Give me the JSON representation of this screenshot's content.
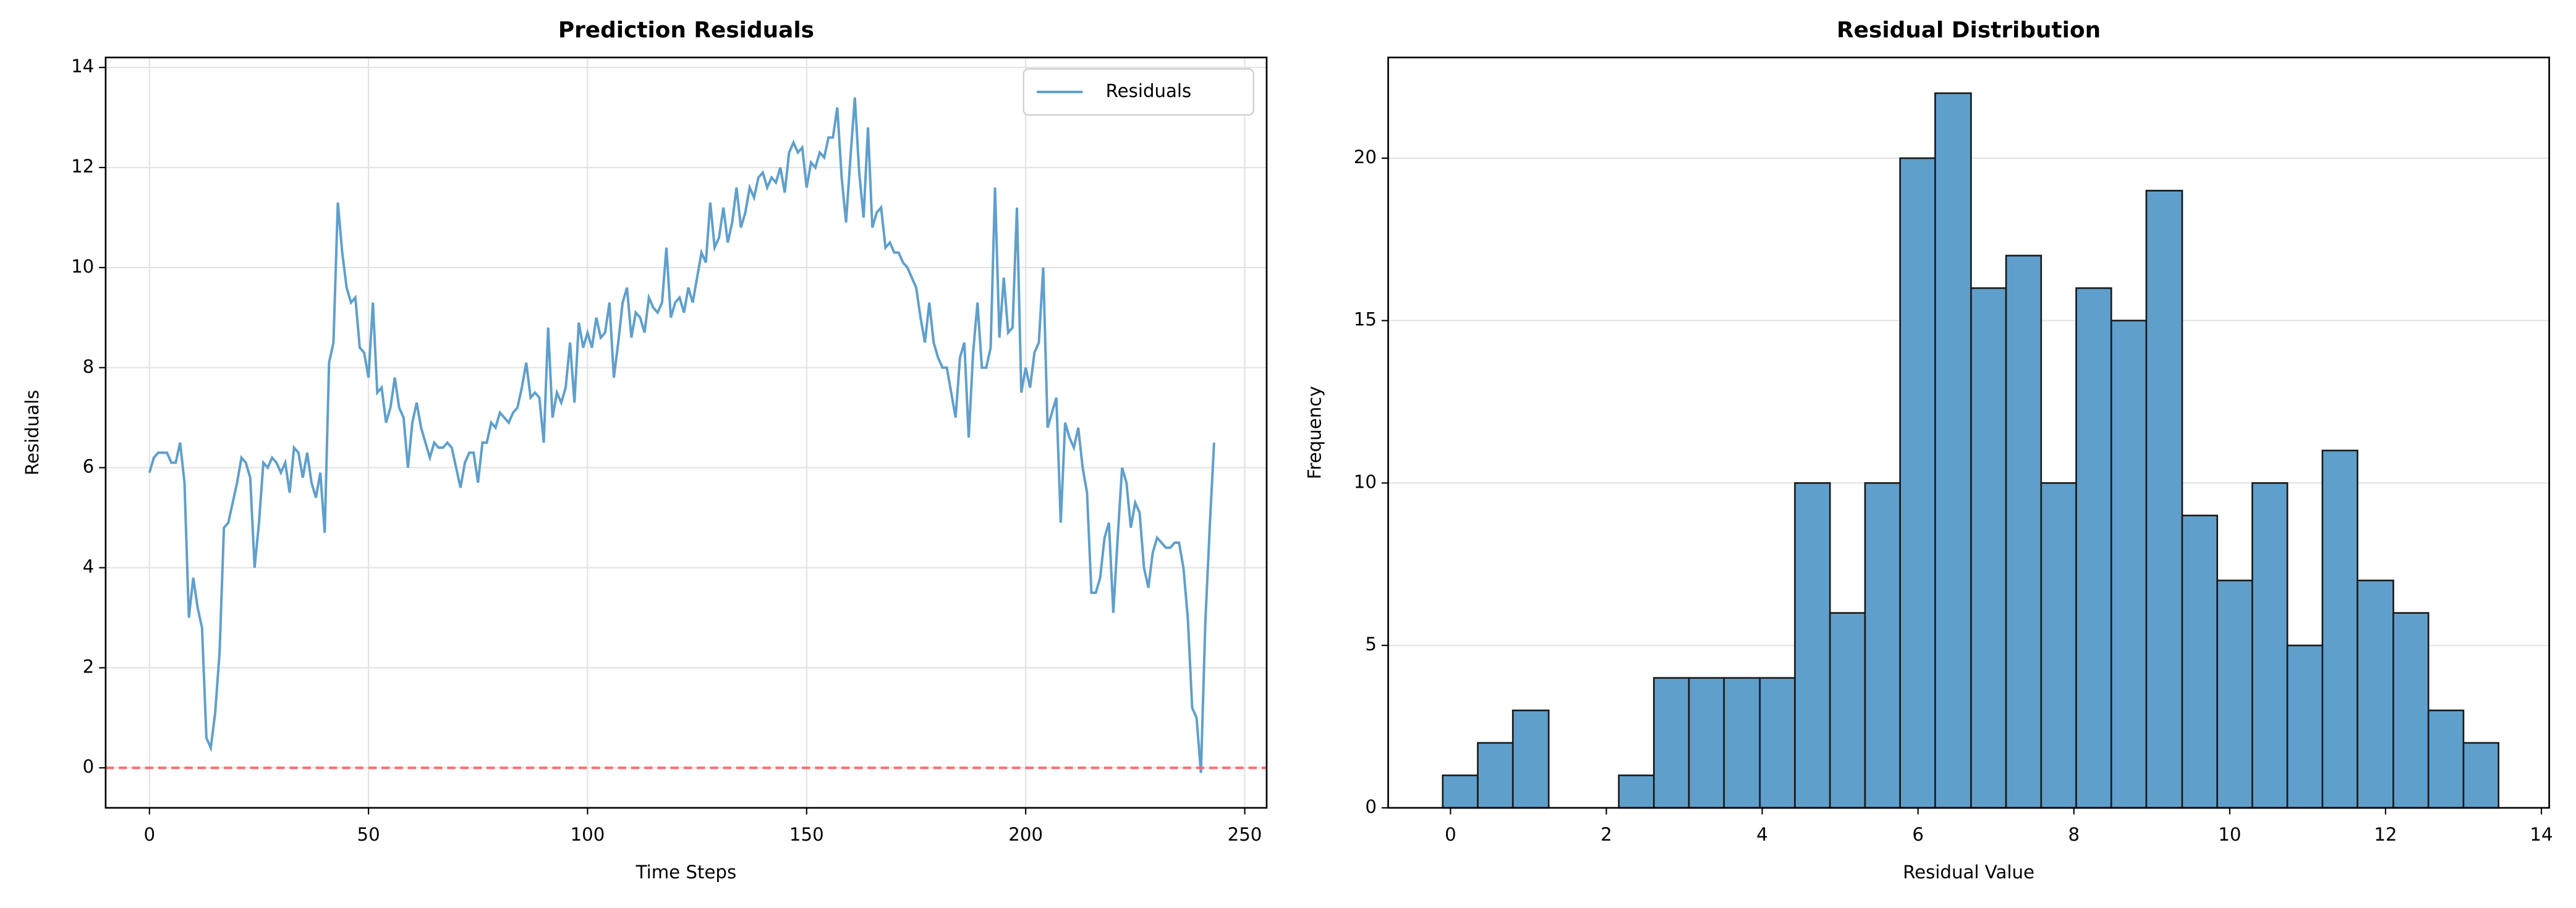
{
  "chart_data": [
    {
      "type": "line",
      "title": "Prediction Residuals",
      "xlabel": "Time Steps",
      "ylabel": "Residuals",
      "x": [
        0,
        1,
        2,
        3,
        4,
        5,
        6,
        7,
        8,
        9,
        10,
        11,
        12,
        13,
        14,
        15,
        16,
        17,
        18,
        19,
        20,
        21,
        22,
        23,
        24,
        25,
        26,
        27,
        28,
        29,
        30,
        31,
        32,
        33,
        34,
        35,
        36,
        37,
        38,
        39,
        40,
        41,
        42,
        43,
        44,
        45,
        46,
        47,
        48,
        49,
        50,
        51,
        52,
        53,
        54,
        55,
        56,
        57,
        58,
        59,
        60,
        61,
        62,
        63,
        64,
        65,
        66,
        67,
        68,
        69,
        70,
        71,
        72,
        73,
        74,
        75,
        76,
        77,
        78,
        79,
        80,
        81,
        82,
        83,
        84,
        85,
        86,
        87,
        88,
        89,
        90,
        91,
        92,
        93,
        94,
        95,
        96,
        97,
        98,
        99,
        100,
        101,
        102,
        103,
        104,
        105,
        106,
        107,
        108,
        109,
        110,
        111,
        112,
        113,
        114,
        115,
        116,
        117,
        118,
        119,
        120,
        121,
        122,
        123,
        124,
        125,
        126,
        127,
        128,
        129,
        130,
        131,
        132,
        133,
        134,
        135,
        136,
        137,
        138,
        139,
        140,
        141,
        142,
        143,
        144,
        145,
        146,
        147,
        148,
        149,
        150,
        151,
        152,
        153,
        154,
        155,
        156,
        157,
        158,
        159,
        160,
        161,
        162,
        163,
        164,
        165,
        166,
        167,
        168,
        169,
        170,
        171,
        172,
        173,
        174,
        175,
        176,
        177,
        178,
        179,
        180,
        181,
        182,
        183,
        184,
        185,
        186,
        187,
        188,
        189,
        190,
        191,
        192,
        193,
        194,
        195,
        196,
        197,
        198,
        199,
        200,
        201,
        202,
        203,
        204,
        205,
        206,
        207,
        208,
        209,
        210,
        211,
        212,
        213,
        214,
        215,
        216,
        217,
        218,
        219,
        220,
        221,
        222,
        223,
        224,
        225,
        226,
        227,
        228,
        229,
        230,
        231,
        232,
        233,
        234,
        235,
        236,
        237,
        238,
        239,
        240,
        241,
        242,
        243
      ],
      "series": [
        {
          "name": "Residuals",
          "color": "#5f9fcc",
          "values": [
            5.9,
            6.2,
            6.3,
            6.3,
            6.3,
            6.1,
            6.1,
            6.5,
            5.7,
            3.0,
            3.8,
            3.2,
            2.8,
            0.6,
            0.4,
            1.1,
            2.3,
            4.8,
            4.9,
            5.3,
            5.7,
            6.2,
            6.1,
            5.8,
            4.0,
            4.9,
            6.1,
            6.0,
            6.2,
            6.1,
            5.9,
            6.1,
            5.5,
            6.4,
            6.3,
            5.8,
            6.3,
            5.7,
            5.4,
            5.9,
            4.7,
            8.1,
            8.5,
            11.3,
            10.3,
            9.6,
            9.3,
            9.4,
            8.4,
            8.3,
            7.8,
            9.3,
            7.5,
            7.6,
            6.9,
            7.2,
            7.8,
            7.2,
            7.0,
            6.0,
            6.9,
            7.3,
            6.8,
            6.5,
            6.2,
            6.5,
            6.4,
            6.4,
            6.5,
            6.4,
            6.0,
            5.6,
            6.1,
            6.3,
            6.3,
            5.7,
            6.5,
            6.5,
            6.9,
            6.8,
            7.1,
            7.0,
            6.9,
            7.1,
            7.2,
            7.6,
            8.1,
            7.4,
            7.5,
            7.4,
            6.5,
            8.8,
            7.0,
            7.5,
            7.3,
            7.6,
            8.5,
            7.3,
            8.9,
            8.4,
            8.7,
            8.4,
            9.0,
            8.6,
            8.7,
            9.3,
            7.8,
            8.5,
            9.3,
            9.6,
            8.6,
            9.1,
            9.0,
            8.7,
            9.4,
            9.2,
            9.1,
            9.3,
            10.4,
            9.0,
            9.3,
            9.4,
            9.1,
            9.6,
            9.3,
            9.8,
            10.3,
            10.1,
            11.3,
            10.4,
            10.6,
            11.2,
            10.5,
            10.9,
            11.6,
            10.8,
            11.1,
            11.6,
            11.4,
            11.8,
            11.9,
            11.6,
            11.8,
            11.7,
            12.0,
            11.5,
            12.3,
            12.5,
            12.3,
            12.4,
            11.6,
            12.1,
            12.0,
            12.3,
            12.2,
            12.6,
            12.6,
            13.2,
            11.8,
            10.9,
            12.2,
            13.4,
            11.9,
            11.0,
            12.8,
            10.8,
            11.1,
            11.2,
            10.4,
            10.5,
            10.3,
            10.3,
            10.1,
            10.0,
            9.8,
            9.6,
            9.0,
            8.5,
            9.3,
            8.5,
            8.2,
            8.0,
            8.0,
            7.5,
            7.0,
            8.2,
            8.5,
            6.6,
            8.3,
            9.3,
            8.0,
            8.0,
            8.4,
            11.6,
            8.6,
            9.8,
            8.7,
            8.8,
            11.2,
            7.5,
            8.0,
            7.6,
            8.3,
            8.5,
            10.0,
            6.8,
            7.1,
            7.4,
            4.9,
            6.9,
            6.6,
            6.4,
            6.8,
            6.0,
            5.5,
            3.5,
            3.5,
            3.8,
            4.6,
            4.9,
            3.1,
            4.6,
            6.0,
            5.7,
            4.8,
            5.3,
            5.1,
            4.0,
            3.6,
            4.3,
            4.6,
            4.5,
            4.4,
            4.4,
            4.5,
            4.5,
            4.0,
            3.0,
            1.2,
            1.0,
            -0.1,
            2.9,
            4.8,
            6.5
          ]
        }
      ],
      "hline": {
        "value": 0,
        "color": "#ff6b6b"
      },
      "xlim": [
        -10,
        255
      ],
      "ylim": [
        -0.8,
        14.2
      ],
      "xticks": [
        0,
        50,
        100,
        150,
        200,
        250
      ],
      "yticks": [
        0,
        2,
        4,
        6,
        8,
        10,
        12,
        14
      ],
      "grid": "both",
      "legend": "upper right"
    },
    {
      "type": "histogram",
      "title": "Residual Distribution",
      "xlabel": "Residual Value",
      "ylabel": "Frequency",
      "bins": [
        -0.1,
        0.35,
        0.8,
        1.26,
        1.71,
        2.16,
        2.61,
        3.06,
        3.51,
        3.97,
        4.42,
        4.87,
        5.32,
        5.77,
        6.22,
        6.68,
        7.13,
        7.58,
        8.03,
        8.48,
        8.93,
        9.39,
        9.84,
        10.29,
        10.74,
        11.19,
        11.64,
        12.1,
        12.55,
        13.0,
        13.45
      ],
      "counts": [
        1,
        2,
        3,
        0,
        0,
        1,
        4,
        4,
        4,
        4,
        10,
        6,
        10,
        20,
        22,
        16,
        17,
        10,
        16,
        15,
        19,
        9,
        7,
        10,
        5,
        11,
        7,
        6,
        3,
        2
      ],
      "color": "#5f9fcc",
      "edgecolor": "#1a1a1a",
      "xlim": [
        -0.8,
        14.1
      ],
      "ylim": [
        0,
        23.1
      ],
      "xticks": [
        0,
        2,
        4,
        6,
        8,
        10,
        12,
        14
      ],
      "yticks": [
        0,
        5,
        10,
        15,
        20
      ],
      "grid": "y"
    }
  ]
}
